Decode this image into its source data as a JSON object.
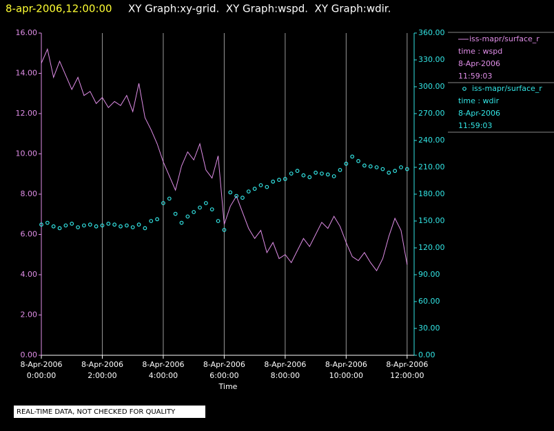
{
  "chart_data": {
    "type": "xy",
    "title_time": "8-apr-2006,12:00:00",
    "title": "XY Graph:xy-grid.  XY Graph:wspd.  XY Graph:wdir.",
    "x_label": "Time",
    "note": "REAL-TIME DATA, NOT CHECKED FOR QUALITY",
    "x": [
      0,
      0.2,
      0.4,
      0.6,
      0.8,
      1,
      1.2,
      1.4,
      1.6,
      1.8,
      2,
      2.2,
      2.4,
      2.6,
      2.8,
      3,
      3.2,
      3.4,
      3.6,
      3.8,
      4,
      4.2,
      4.4,
      4.6,
      4.8,
      5,
      5.2,
      5.4,
      5.6,
      5.8,
      6,
      6.2,
      6.4,
      6.6,
      6.8,
      7,
      7.2,
      7.4,
      7.6,
      7.8,
      8,
      8.2,
      8.4,
      8.6,
      8.8,
      9,
      9.2,
      9.4,
      9.6,
      9.8,
      10,
      10.2,
      10.4,
      10.6,
      10.8,
      11,
      11.2,
      11.4,
      11.6,
      11.8,
      12
    ],
    "xlim": [
      0,
      12.23
    ],
    "xticks": [
      {
        "value": 0,
        "label": [
          "8-Apr-2006",
          "0:00:00"
        ]
      },
      {
        "value": 2,
        "label": [
          "8-Apr-2006",
          "2:00:00"
        ]
      },
      {
        "value": 4,
        "label": [
          "8-Apr-2006",
          "4:00:00"
        ]
      },
      {
        "value": 6,
        "label": [
          "8-Apr-2006",
          "6:00:00"
        ]
      },
      {
        "value": 8,
        "label": [
          "8-Apr-2006",
          "8:00:00"
        ]
      },
      {
        "value": 10,
        "label": [
          "8-Apr-2006",
          "10:00:00"
        ]
      },
      {
        "value": 12,
        "label": [
          "8-Apr-2006",
          "12:00:00"
        ]
      }
    ],
    "grid": true,
    "ylim": [
      0,
      16
    ],
    "yticks": [
      {
        "value": 0,
        "label": "0.00"
      },
      {
        "value": 2,
        "label": "2.00"
      },
      {
        "value": 4,
        "label": "4.00"
      },
      {
        "value": 6,
        "label": "6.00"
      },
      {
        "value": 8,
        "label": "8.00"
      },
      {
        "value": 10,
        "label": "10.00"
      },
      {
        "value": 12,
        "label": "12.00"
      },
      {
        "value": 14,
        "label": "14.00"
      },
      {
        "value": 16,
        "label": "16.00"
      }
    ],
    "y2lim": [
      0,
      360
    ],
    "y2ticks": [
      {
        "value": 0,
        "label": "0.00"
      },
      {
        "value": 30,
        "label": "30.00"
      },
      {
        "value": 60,
        "label": "60.00"
      },
      {
        "value": 90,
        "label": "90.00"
      },
      {
        "value": 120,
        "label": "120.00"
      },
      {
        "value": 150,
        "label": "150.00"
      },
      {
        "value": 180,
        "label": "180.00"
      },
      {
        "value": 210,
        "label": "210.00"
      },
      {
        "value": 240,
        "label": "240.00"
      },
      {
        "value": 270,
        "label": "270.00"
      },
      {
        "value": 300,
        "label": "300.00"
      },
      {
        "value": 330,
        "label": "330.00"
      },
      {
        "value": 360,
        "label": "360.00"
      }
    ],
    "series": [
      {
        "name": "iss-mapr/surface_r",
        "mark": "line",
        "color": "#e08ee8",
        "legend_lines": [
          "time : wspd",
          "8-Apr-2006",
          "11:59:03"
        ],
        "values": [
          14.5,
          15.2,
          13.8,
          14.6,
          13.9,
          13.2,
          13.8,
          12.9,
          13.1,
          12.5,
          12.8,
          12.3,
          12.6,
          12.4,
          12.9,
          12.1,
          13.5,
          11.8,
          11.2,
          10.5,
          9.6,
          8.9,
          8.2,
          9.4,
          10.1,
          9.7,
          10.5,
          9.2,
          8.8,
          9.9,
          6.5,
          7.4,
          7.9,
          7.1,
          6.3,
          5.8,
          6.2,
          5.1,
          5.6,
          4.8,
          5.0,
          4.6,
          5.2,
          5.8,
          5.4,
          6.0,
          6.6,
          6.3,
          6.9,
          6.4,
          5.6,
          4.9,
          4.7,
          5.1,
          4.6,
          4.2,
          4.8,
          5.9,
          6.8,
          6.2,
          4.5
        ]
      },
      {
        "name": "iss-mapr/surface_r",
        "mark": "scatter",
        "axis": "y2",
        "color": "#33e6e6",
        "legend_lines": [
          "time : wdir",
          "8-Apr-2006",
          "11:59:03"
        ],
        "values": [
          146,
          148,
          144,
          142,
          145,
          147,
          143,
          145,
          146,
          144,
          145,
          147,
          146,
          144,
          145,
          143,
          146,
          142,
          150,
          152,
          170,
          175,
          158,
          148,
          155,
          160,
          165,
          170,
          163,
          150,
          140,
          182,
          178,
          176,
          183,
          186,
          190,
          188,
          194,
          196,
          197,
          203,
          206,
          201,
          199,
          204,
          203,
          202,
          200,
          207,
          214,
          222,
          217,
          212,
          211,
          210,
          208,
          204,
          206,
          210,
          208
        ]
      }
    ]
  }
}
